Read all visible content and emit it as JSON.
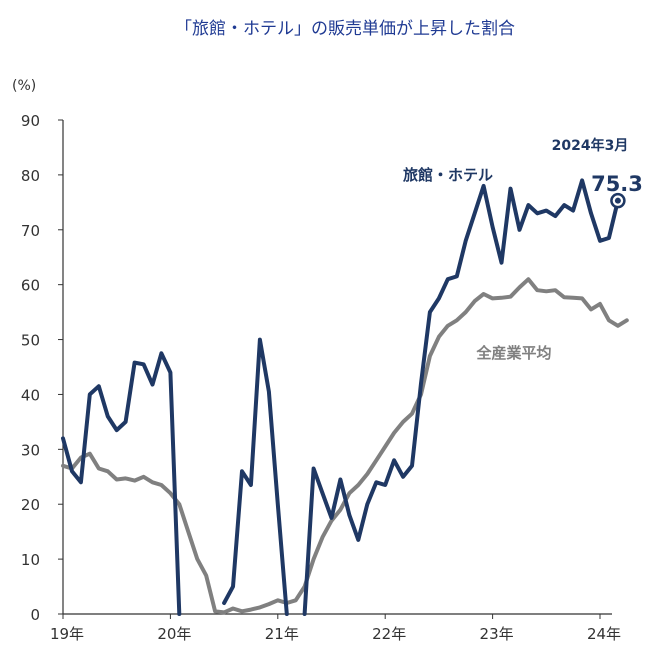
{
  "chart_data": {
    "type": "line",
    "title": "「旅館・ホテル」の販売単価が上昇した割合",
    "ylabel": "(%)",
    "ylim": [
      0,
      90
    ],
    "yticks": [
      "0",
      "10",
      "20",
      "30",
      "40",
      "50",
      "60",
      "70",
      "80",
      "90"
    ],
    "x_tick_labels": [
      "19年",
      "20年",
      "21年",
      "22年",
      "23年",
      "24年"
    ],
    "x_tick_index": [
      0,
      12,
      24,
      36,
      48,
      60
    ],
    "x_start_period": "2019-01",
    "series": [
      {
        "name": "旅館・ホテル",
        "color": "#1f3864",
        "values": [
          32,
          26,
          24,
          40,
          41.5,
          36,
          33.5,
          35,
          45.8,
          45.5,
          41.8,
          47.5,
          44,
          0,
          null,
          null,
          null,
          null,
          2,
          5,
          26,
          23.5,
          50,
          40.5,
          20,
          0,
          null,
          0,
          26.5,
          22,
          17.5,
          24.5,
          18,
          13.5,
          20,
          24,
          23.5,
          28,
          25,
          27,
          42,
          55,
          57.5,
          61,
          61.5,
          68,
          73,
          78,
          70.5,
          64,
          77.5,
          70,
          74.5,
          73,
          73.5,
          72.5,
          74.5,
          73.5,
          79,
          73,
          68,
          68.5,
          75.3
        ]
      },
      {
        "name": "全産業平均",
        "color": "#808080",
        "values": [
          27,
          26.5,
          28.5,
          29.2,
          26.5,
          26,
          24.5,
          24.7,
          24.3,
          25,
          24,
          23.5,
          22,
          20,
          15,
          10,
          7,
          0.5,
          0.3,
          1,
          0.5,
          0.8,
          1.2,
          1.8,
          2.5,
          2,
          2.5,
          5,
          10,
          14,
          17,
          19,
          22,
          23.5,
          25.5,
          28,
          30.5,
          33,
          35,
          36.5,
          40,
          47,
          50.5,
          52.5,
          53.5,
          55,
          57,
          58.3,
          57.5,
          57.6,
          57.8,
          59.5,
          61,
          59,
          58.8,
          59,
          57.7,
          57.6,
          57.5,
          55.5,
          56.5,
          53.5,
          52.5,
          53.5
        ]
      }
    ],
    "series_labels": {
      "hotel": "旅館・ホテル",
      "average": "全産業平均"
    },
    "annotation": {
      "date": "2024年3月",
      "value_text": "75.3",
      "value": 75.3
    }
  }
}
